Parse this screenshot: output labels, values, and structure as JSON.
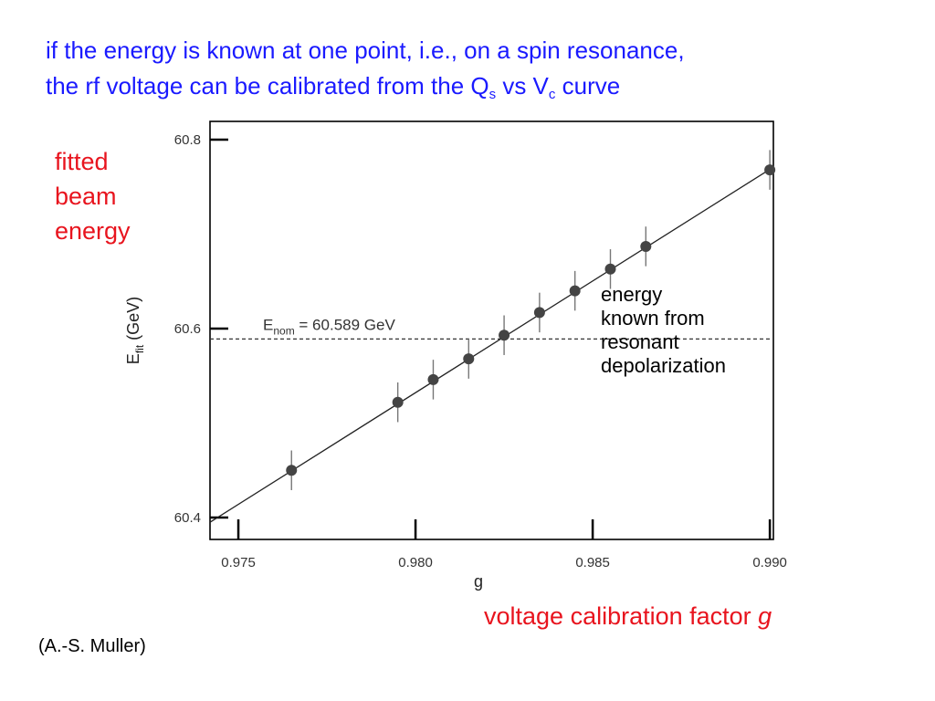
{
  "title": {
    "line1": "if the energy is known at one point, i.e., on a spin resonance,",
    "line2_pre": "the rf voltage can be calibrated from the Q",
    "line2_sub1": "s",
    "line2_mid": " vs V",
    "line2_sub2": "c",
    "line2_post": " curve"
  },
  "side_label": {
    "line1": "fitted",
    "line2": "beam",
    "line3": "energy"
  },
  "bottom_label": {
    "text": "voltage calibration factor ",
    "italic": "g"
  },
  "credit": "(A.-S. Muller)",
  "annotation": {
    "line1": "energy",
    "line2": "known from",
    "line3": "resonant",
    "line4": "depolarization"
  },
  "chart_data": {
    "type": "scatter",
    "xlabel": "g",
    "ylabel_main": "E",
    "ylabel_sub": "fit",
    "ylabel_unit": " (GeV)",
    "xlim": [
      0.9742,
      0.9901
    ],
    "ylim": [
      60.4,
      60.8
    ],
    "xticks": [
      {
        "value": 0.975,
        "label": "0.975"
      },
      {
        "value": 0.98,
        "label": "0.980"
      },
      {
        "value": 0.985,
        "label": "0.985"
      },
      {
        "value": 0.99,
        "label": "0.990"
      }
    ],
    "yticks": [
      {
        "value": 60.4,
        "label": "60.4"
      },
      {
        "value": 60.6,
        "label": "60.6"
      },
      {
        "value": 60.8,
        "label": "60.8"
      }
    ],
    "points": [
      {
        "x": 0.9765,
        "y": 60.45,
        "err": 0.021
      },
      {
        "x": 0.9795,
        "y": 60.522,
        "err": 0.021
      },
      {
        "x": 0.9805,
        "y": 60.546,
        "err": 0.021
      },
      {
        "x": 0.9815,
        "y": 60.568,
        "err": 0.021
      },
      {
        "x": 0.9825,
        "y": 60.593,
        "err": 0.021
      },
      {
        "x": 0.9835,
        "y": 60.617,
        "err": 0.021
      },
      {
        "x": 0.9845,
        "y": 60.64,
        "err": 0.021
      },
      {
        "x": 0.9855,
        "y": 60.663,
        "err": 0.021
      },
      {
        "x": 0.9865,
        "y": 60.687,
        "err": 0.021
      },
      {
        "x": 0.99,
        "y": 60.768,
        "err": 0.021
      }
    ],
    "fit_line": {
      "x": [
        0.9742,
        0.9901
      ],
      "y": [
        60.395,
        60.771
      ]
    },
    "reference_line": {
      "y": 60.589,
      "label_main": "E",
      "label_sub": "nom",
      "label_rest": " = 60.589 GeV"
    },
    "colors": {
      "points": "#444444",
      "axes": "#000000",
      "title": "#1a1aff",
      "labels": "#e8141e"
    }
  }
}
